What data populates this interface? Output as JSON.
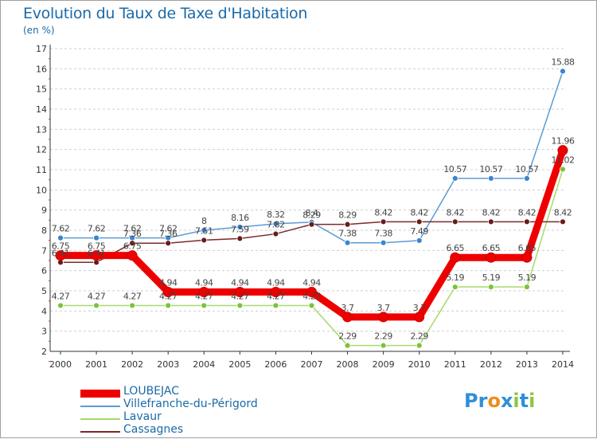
{
  "title": "Evolution du Taux de Taxe d'Habitation",
  "subtitle": "(en %)",
  "logo": {
    "letters": [
      {
        "ch": "P",
        "color": "#2f8fd6"
      },
      {
        "ch": "r",
        "color": "#2f8fd6"
      },
      {
        "ch": "o",
        "color": "#f08c1a"
      },
      {
        "ch": "x",
        "color": "#2f8fd6"
      },
      {
        "ch": "i",
        "color": "#8cc63f"
      },
      {
        "ch": "t",
        "color": "#2f8fd6"
      },
      {
        "ch": "i",
        "color": "#8cc63f"
      }
    ]
  },
  "chart_data": {
    "type": "line",
    "title": "Evolution du Taux de Taxe d'Habitation",
    "ylabel": "(en %)",
    "xlabel": "",
    "ylim": [
      2,
      17
    ],
    "y_ticks": [
      2,
      3,
      4,
      5,
      6,
      7,
      8,
      9,
      10,
      11,
      12,
      13,
      14,
      15,
      16,
      17
    ],
    "categories": [
      "2000",
      "2001",
      "2002",
      "2003",
      "2004",
      "2005",
      "2006",
      "2007",
      "2008",
      "2009",
      "2010",
      "2011",
      "2012",
      "2013",
      "2014"
    ],
    "grid": "horizontal dashed",
    "legend_position": "bottom-left",
    "series": [
      {
        "name": "LOUBEJAC",
        "color": "#ee0000",
        "marker": "#ee0000",
        "values": [
          6.75,
          6.75,
          6.75,
          4.94,
          4.94,
          4.94,
          4.94,
          4.94,
          3.7,
          3.7,
          3.7,
          6.65,
          6.65,
          6.65,
          11.96
        ],
        "labels": [
          "6.75",
          "6.75",
          "6.75",
          "4.94",
          "4.94",
          "4.94",
          "4.94",
          "4.94",
          "3.7",
          "3.7",
          "3.7",
          "6.65",
          "6.65",
          "6.65",
          "11.96"
        ]
      },
      {
        "name": "Villefranche-du-Périgord",
        "color": "#5b9bd5",
        "marker": "#3a85cc",
        "values": [
          7.62,
          7.62,
          7.62,
          7.62,
          8,
          8.16,
          8.32,
          8.4,
          7.38,
          7.38,
          7.49,
          10.57,
          10.57,
          10.57,
          15.88
        ],
        "labels": [
          "7.62",
          "7.62",
          "7.62",
          "7.62",
          "8",
          "8.16",
          "8.32",
          "8.4",
          "7.38",
          "7.38",
          "7.49",
          "10.57",
          "10.57",
          "10.57",
          "15.88"
        ]
      },
      {
        "name": "Lavaur",
        "color": "#a6d96a",
        "marker": "#7cc23a",
        "values": [
          4.27,
          4.27,
          4.27,
          4.27,
          4.27,
          4.27,
          4.27,
          4.27,
          2.29,
          2.29,
          2.29,
          5.19,
          5.19,
          5.19,
          11.02
        ],
        "labels": [
          "4.27",
          "4.27",
          "4.27",
          "4.27",
          "4.27",
          "4.27",
          "4.27",
          "4.27",
          "2.29",
          "2.29",
          "2.29",
          "5.19",
          "5.19",
          "5.19",
          "11.02"
        ]
      },
      {
        "name": "Cassagnes",
        "color": "#7b2a2a",
        "marker": "#6b1a1a",
        "values": [
          6.41,
          6.41,
          7.36,
          7.36,
          7.51,
          7.59,
          7.82,
          8.29,
          8.29,
          8.42,
          8.42,
          8.42,
          8.42,
          8.42,
          8.42
        ],
        "labels": [
          "6.41",
          "6.41",
          "7.36",
          "7.36",
          "7.51",
          "7.59",
          "7.82",
          "8.29",
          "8.29",
          "8.42",
          "8.42",
          "8.42",
          "8.42",
          "8.42",
          "8.42"
        ]
      }
    ]
  }
}
